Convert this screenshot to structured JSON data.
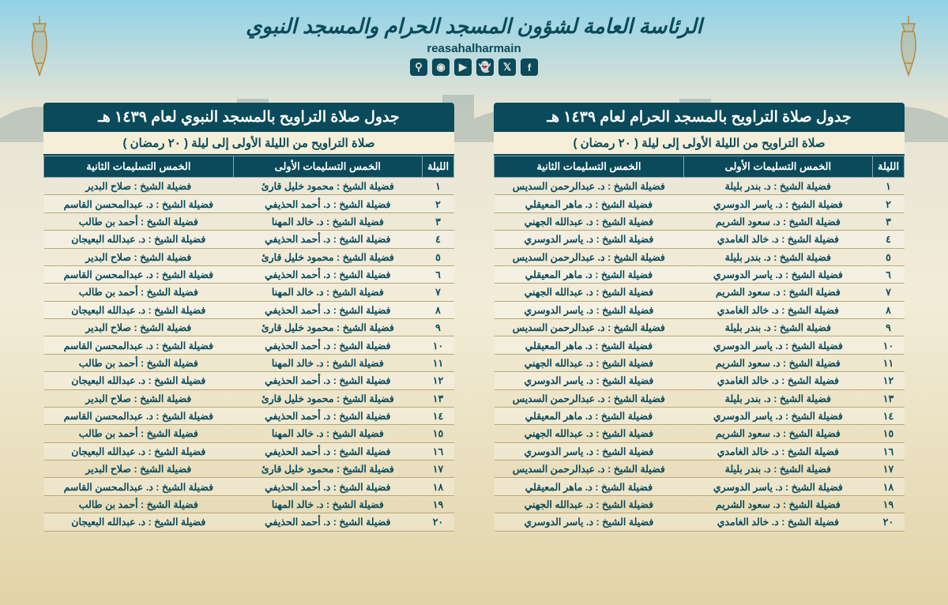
{
  "header": {
    "org_title": "الرئاسة العامة لشؤون المسجد الحرام والمسجد النبوي",
    "handle": "reasahalharmain",
    "social": [
      "f",
      "t",
      "s",
      "y",
      "ig",
      "p"
    ]
  },
  "columns": {
    "night": "الليلة",
    "first": "الخمس التسليمات الأولى",
    "second": "الخمس التسليمات الثانية"
  },
  "arabic_nums": [
    "١",
    "٢",
    "٣",
    "٤",
    "٥",
    "٦",
    "٧",
    "٨",
    "٩",
    "١٠",
    "١١",
    "١٢",
    "١٣",
    "١٤",
    "١٥",
    "١٦",
    "١٧",
    "١٨",
    "١٩",
    "٢٠"
  ],
  "colors": {
    "header_bg": "#0a4a5a",
    "header_text": "#ffffff",
    "body_text": "#0a4a5a",
    "row_divider": "#b8a878"
  },
  "haram": {
    "title": "جدول صلاة التراويح بالمسجد الحرام لعام ١٤٣٩ هـ",
    "subtitle": "صلاة التراويح من الليلة الأولى إلى ليلة ( ٢٠ رمضان )",
    "rows": [
      {
        "f": "فضيلة الشيخ : د. بندر بليلة",
        "s": "فضيلة الشيخ : د. عبدالرحمن السديس"
      },
      {
        "f": "فضيلة الشيخ : د. ياسر الدوسري",
        "s": "فضيلة الشيخ : د. ماهر المعيقلي"
      },
      {
        "f": "فضيلة الشيخ : د. سعود الشريم",
        "s": "فضيلة الشيخ : د. عبدالله الجهني"
      },
      {
        "f": "فضيلة الشيخ : د. خالد الغامدي",
        "s": "فضيلة الشيخ : د. ياسر الدوسري"
      },
      {
        "f": "فضيلة الشيخ : د. بندر بليلة",
        "s": "فضيلة الشيخ : د. عبدالرحمن السديس"
      },
      {
        "f": "فضيلة الشيخ : د. ياسر الدوسري",
        "s": "فضيلة الشيخ : د. ماهر المعيقلي"
      },
      {
        "f": "فضيلة الشيخ : د. سعود الشريم",
        "s": "فضيلة الشيخ : د. عبدالله الجهني"
      },
      {
        "f": "فضيلة الشيخ : د. خالد الغامدي",
        "s": "فضيلة الشيخ : د. ياسر الدوسري"
      },
      {
        "f": "فضيلة الشيخ : د. بندر بليلة",
        "s": "فضيلة الشيخ : د. عبدالرحمن السديس"
      },
      {
        "f": "فضيلة الشيخ : د. ياسر الدوسري",
        "s": "فضيلة الشيخ : د. ماهر المعيقلي"
      },
      {
        "f": "فضيلة الشيخ : د. سعود الشريم",
        "s": "فضيلة الشيخ : د. عبدالله الجهني"
      },
      {
        "f": "فضيلة الشيخ : د. خالد الغامدي",
        "s": "فضيلة الشيخ : د. ياسر الدوسري"
      },
      {
        "f": "فضيلة الشيخ : د. بندر بليلة",
        "s": "فضيلة الشيخ : د. عبدالرحمن السديس"
      },
      {
        "f": "فضيلة الشيخ : د. ياسر الدوسري",
        "s": "فضيلة الشيخ : د. ماهر المعيقلي"
      },
      {
        "f": "فضيلة الشيخ : د. سعود الشريم",
        "s": "فضيلة الشيخ : د. عبدالله الجهني"
      },
      {
        "f": "فضيلة الشيخ : د. خالد الغامدي",
        "s": "فضيلة الشيخ : د. ياسر الدوسري"
      },
      {
        "f": "فضيلة الشيخ : د. بندر بليلة",
        "s": "فضيلة الشيخ : د. عبدالرحمن السديس"
      },
      {
        "f": "فضيلة الشيخ : د. ياسر الدوسري",
        "s": "فضيلة الشيخ : د. ماهر المعيقلي"
      },
      {
        "f": "فضيلة الشيخ : د. سعود الشريم",
        "s": "فضيلة الشيخ : د. عبدالله الجهني"
      },
      {
        "f": "فضيلة الشيخ : د. خالد الغامدي",
        "s": "فضيلة الشيخ : د. ياسر الدوسري"
      }
    ]
  },
  "nabawi": {
    "title": "جدول صلاة التراويح بالمسجد النبوي لعام ١٤٣٩ هـ",
    "subtitle": "صلاة التراويح من الليلة الأولى إلى ليلة ( ٢٠ رمضان )",
    "rows": [
      {
        "f": "فضيلة الشيخ : محمود خليل قارئ",
        "s": "فضيلة الشيخ : صلاح البدير"
      },
      {
        "f": "فضيلة الشيخ : د. أحمد الحذيفي",
        "s": "فضيلة الشيخ : د. عبدالمحسن القاسم"
      },
      {
        "f": "فضيلة الشيخ : د. خالد المهنا",
        "s": "فضيلة الشيخ : أحمد بن طالب"
      },
      {
        "f": "فضيلة الشيخ : د. أحمد الحذيفي",
        "s": "فضيلة الشيخ : د. عبدالله البعيجان"
      },
      {
        "f": "فضيلة الشيخ : محمود خليل قارئ",
        "s": "فضيلة الشيخ : صلاح البدير"
      },
      {
        "f": "فضيلة الشيخ : د. أحمد الحذيفي",
        "s": "فضيلة الشيخ : د. عبدالمحسن القاسم"
      },
      {
        "f": "فضيلة الشيخ : د. خالد المهنا",
        "s": "فضيلة الشيخ : أحمد بن طالب"
      },
      {
        "f": "فضيلة الشيخ : د. أحمد الحذيفي",
        "s": "فضيلة الشيخ : د. عبدالله البعيجان"
      },
      {
        "f": "فضيلة الشيخ : محمود خليل قارئ",
        "s": "فضيلة الشيخ : صلاح البدير"
      },
      {
        "f": "فضيلة الشيخ : د. أحمد الحذيفي",
        "s": "فضيلة الشيخ : د. عبدالمحسن القاسم"
      },
      {
        "f": "فضيلة الشيخ : د. خالد المهنا",
        "s": "فضيلة الشيخ : أحمد بن طالب"
      },
      {
        "f": "فضيلة الشيخ : د. أحمد الحذيفي",
        "s": "فضيلة الشيخ : د. عبدالله البعيجان"
      },
      {
        "f": "فضيلة الشيخ : محمود خليل قارئ",
        "s": "فضيلة الشيخ : صلاح البدير"
      },
      {
        "f": "فضيلة الشيخ : د. أحمد الحذيفي",
        "s": "فضيلة الشيخ : د. عبدالمحسن القاسم"
      },
      {
        "f": "فضيلة الشيخ : د. خالد المهنا",
        "s": "فضيلة الشيخ : أحمد بن طالب"
      },
      {
        "f": "فضيلة الشيخ : د. أحمد الحذيفي",
        "s": "فضيلة الشيخ : د. عبدالله البعيجان"
      },
      {
        "f": "فضيلة الشيخ : محمود خليل قارئ",
        "s": "فضيلة الشيخ : صلاح البدير"
      },
      {
        "f": "فضيلة الشيخ : د. أحمد الحذيفي",
        "s": "فضيلة الشيخ : د. عبدالمحسن القاسم"
      },
      {
        "f": "فضيلة الشيخ : د. خالد المهنا",
        "s": "فضيلة الشيخ : أحمد بن طالب"
      },
      {
        "f": "فضيلة الشيخ : د. أحمد الحذيفي",
        "s": "فضيلة الشيخ : د. عبدالله البعيجان"
      }
    ]
  }
}
